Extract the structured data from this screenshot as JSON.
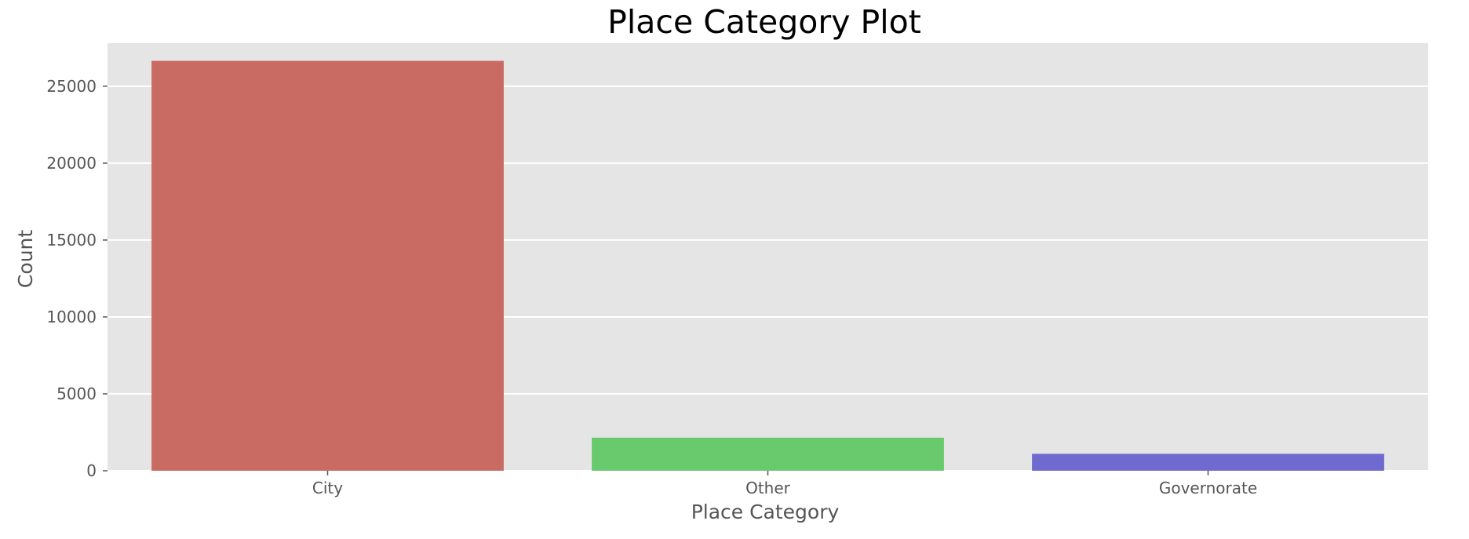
{
  "chart_data": {
    "type": "bar",
    "title": "Place Category Plot",
    "xlabel": "Place Category",
    "ylabel": "Count",
    "categories": [
      "City",
      "Other",
      "Governorate"
    ],
    "values": [
      26650,
      2150,
      1100
    ],
    "colors": [
      "#c96b63",
      "#68c96d",
      "#6f6acf"
    ],
    "ylim": [
      0,
      27800
    ],
    "yticks": [
      0,
      5000,
      10000,
      15000,
      20000,
      25000
    ],
    "ytick_labels": [
      "0",
      "5000",
      "10000",
      "15000",
      "20000",
      "25000"
    ],
    "grid": true,
    "legend": false,
    "background_color": "#e5e5e5",
    "grid_color": "#ffffff",
    "tick_color": "#555555"
  }
}
